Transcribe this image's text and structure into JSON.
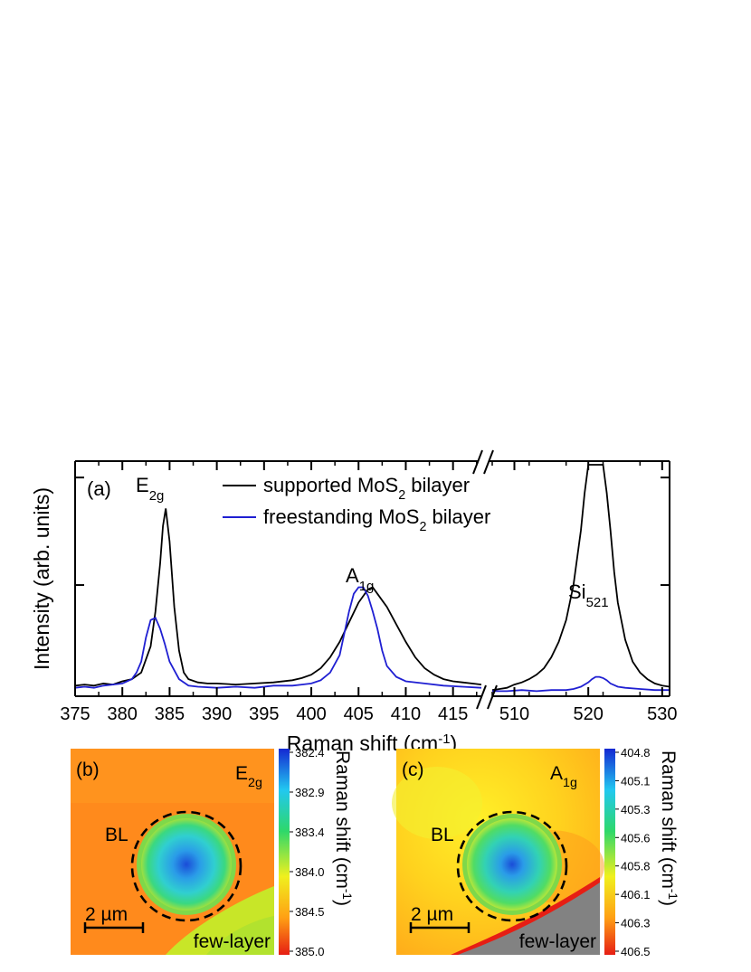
{
  "chart_data": [
    {
      "type": "line",
      "panel_label": "(a)",
      "xlabel": "Raman shift (cm",
      "xlabel_sup": "-1",
      "xlabel_end": ")",
      "ylabel": "Intensity (arb. units)",
      "broken_x_axis": true,
      "x_segments": [
        {
          "xlim": [
            375,
            418
          ],
          "ticks": [
            375,
            380,
            385,
            390,
            395,
            400,
            405,
            410,
            415
          ]
        },
        {
          "xlim": [
            507,
            531
          ],
          "ticks": [
            510,
            520,
            530
          ]
        }
      ],
      "ylim": [
        0,
        1.05
      ],
      "y_tick_labels_shown": false,
      "legend": {
        "placement": "top-center",
        "entries": [
          {
            "pre": "supported MoS",
            "sub": "2",
            "post": " bilayer",
            "color": "#000000"
          },
          {
            "pre": "freestanding MoS",
            "sub": "2",
            "post": " bilayer",
            "color": "#1f1fd2"
          }
        ]
      },
      "annotations": [
        {
          "base": "E",
          "sub": "2g",
          "x": 384.5
        },
        {
          "base": "A",
          "sub": "1g",
          "x": 406
        },
        {
          "base": "Si",
          "sub": "521",
          "x": 521
        }
      ],
      "series": [
        {
          "name": "supported MoS2 bilayer",
          "color": "#000000",
          "x": [
            375,
            376,
            377,
            378,
            379,
            380,
            381,
            382,
            383,
            383.5,
            384,
            384.3,
            384.6,
            385,
            385.5,
            386,
            386.5,
            387,
            388,
            389,
            390,
            392,
            394,
            396,
            398,
            399,
            400,
            401,
            402,
            403,
            404,
            405,
            405.5,
            406,
            406.5,
            407,
            408,
            409,
            410,
            411,
            412,
            413,
            414,
            415,
            416,
            417,
            418,
            507,
            508,
            509,
            510,
            511,
            512,
            513,
            514,
            515,
            516,
            517,
            518,
            519,
            519.5,
            520,
            520.5,
            521,
            521.5,
            522,
            522.5,
            523,
            523.5,
            524,
            525,
            526,
            527,
            528,
            529,
            530,
            531
          ],
          "y": [
            0.04,
            0.045,
            0.04,
            0.05,
            0.045,
            0.06,
            0.07,
            0.1,
            0.22,
            0.38,
            0.6,
            0.77,
            0.85,
            0.7,
            0.4,
            0.2,
            0.1,
            0.07,
            0.055,
            0.05,
            0.05,
            0.045,
            0.05,
            0.055,
            0.065,
            0.075,
            0.09,
            0.12,
            0.17,
            0.24,
            0.33,
            0.42,
            0.45,
            0.48,
            0.49,
            0.46,
            0.4,
            0.32,
            0.24,
            0.17,
            0.12,
            0.09,
            0.07,
            0.06,
            0.055,
            0.05,
            0.045,
            0.02,
            0.025,
            0.03,
            0.045,
            0.055,
            0.07,
            0.09,
            0.12,
            0.17,
            0.24,
            0.34,
            0.5,
            0.75,
            0.92,
            1.05,
            1.05,
            1.05,
            1.05,
            1.05,
            0.92,
            0.75,
            0.56,
            0.42,
            0.25,
            0.15,
            0.1,
            0.07,
            0.05,
            0.04,
            0.035
          ]
        },
        {
          "name": "freestanding MoS2 bilayer",
          "color": "#1f1fd2",
          "x": [
            375,
            376,
            377,
            378,
            379,
            380,
            381,
            381.5,
            382,
            382.5,
            383,
            383.5,
            384,
            384.5,
            385,
            386,
            387,
            388,
            390,
            392,
            394,
            396,
            398,
            399,
            400,
            401,
            402,
            403,
            403.5,
            404,
            404.5,
            405,
            405.5,
            406,
            406.5,
            407,
            407.5,
            408,
            409,
            410,
            412,
            414,
            416,
            418,
            507,
            509,
            511,
            513,
            515,
            517,
            518,
            519,
            520,
            520.5,
            521,
            521.5,
            522,
            522.5,
            523,
            524,
            525,
            527,
            529,
            531
          ],
          "y": [
            0.03,
            0.035,
            0.03,
            0.04,
            0.045,
            0.05,
            0.07,
            0.1,
            0.15,
            0.26,
            0.34,
            0.35,
            0.3,
            0.23,
            0.15,
            0.07,
            0.04,
            0.035,
            0.03,
            0.035,
            0.03,
            0.04,
            0.04,
            0.045,
            0.05,
            0.065,
            0.1,
            0.18,
            0.28,
            0.38,
            0.46,
            0.49,
            0.49,
            0.45,
            0.38,
            0.3,
            0.2,
            0.13,
            0.08,
            0.06,
            0.05,
            0.04,
            0.035,
            0.03,
            0.015,
            0.015,
            0.02,
            0.015,
            0.02,
            0.02,
            0.025,
            0.035,
            0.055,
            0.07,
            0.08,
            0.08,
            0.075,
            0.065,
            0.05,
            0.035,
            0.03,
            0.025,
            0.02,
            0.02
          ]
        }
      ]
    },
    {
      "type": "heatmap",
      "panel_label": "(b)",
      "mode_base": "E",
      "mode_sub": "2g",
      "region_labels": {
        "bilayer": "BL",
        "few_layer": "few-layer"
      },
      "scale_bar": "2 µm",
      "colorbar": {
        "title": "Raman shift (cm",
        "title_sup": "-1",
        "title_end": ")",
        "ticks": [
          "382.4",
          "382.9",
          "383.4",
          "384.0",
          "384.5",
          "385.0"
        ],
        "colormap": [
          "#1428d2",
          "#22c8f0",
          "#2ed86a",
          "#f0f01e",
          "#ffa014",
          "#e61e14"
        ]
      }
    },
    {
      "type": "heatmap",
      "panel_label": "(c)",
      "mode_base": "A",
      "mode_sub": "1g",
      "region_labels": {
        "bilayer": "BL",
        "few_layer": "few-layer"
      },
      "scale_bar": "2 µm",
      "colorbar": {
        "title": "Raman shift (cm",
        "title_sup": "-1",
        "title_end": ")",
        "ticks": [
          "404.8",
          "405.1",
          "405.3",
          "405.6",
          "405.8",
          "406.1",
          "406.3",
          "406.5"
        ],
        "colormap": [
          "#1428d2",
          "#22c8f0",
          "#2ed86a",
          "#f0f01e",
          "#ffa014",
          "#e61e14"
        ]
      }
    }
  ]
}
